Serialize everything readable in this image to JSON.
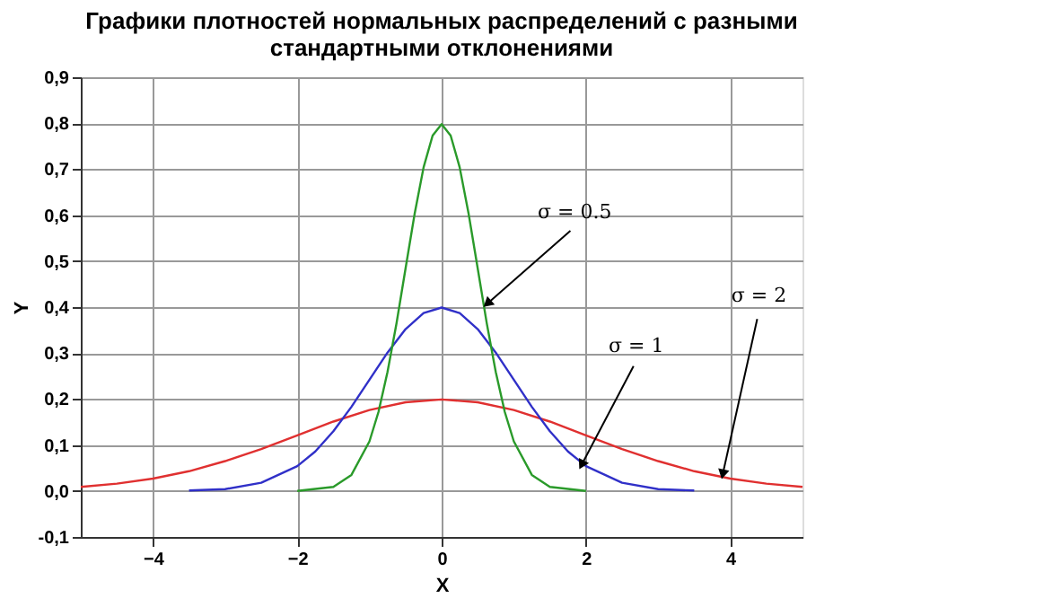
{
  "chart_data": {
    "type": "line",
    "title": [
      "Графики плотностей нормальных распределений с разными",
      "стандартными отклонениями"
    ],
    "xlabel": "X",
    "ylabel": "Y",
    "series": [
      {
        "color": "#e03030",
        "x": [
          -5,
          -4.5,
          -4,
          -3.5,
          -3,
          -2.5,
          -2,
          -1.5,
          -1,
          -0.5,
          0,
          0.5,
          1,
          1.5,
          2,
          2.5,
          3,
          3.5,
          4,
          4.5,
          5
        ],
        "values": [
          0.009,
          0.016,
          0.027,
          0.043,
          0.065,
          0.091,
          0.121,
          0.151,
          0.176,
          0.193,
          0.199,
          0.193,
          0.176,
          0.151,
          0.121,
          0.091,
          0.065,
          0.043,
          0.027,
          0.016,
          0.009
        ]
      },
      {
        "color": "#3030c8",
        "x": [
          -3.5,
          -3,
          -2.5,
          -2,
          -1.75,
          -1.5,
          -1.25,
          -1,
          -0.75,
          -0.5,
          -0.25,
          0,
          0.25,
          0.5,
          0.75,
          1,
          1.25,
          1.5,
          1.75,
          2,
          2.5,
          3,
          3.5
        ],
        "values": [
          0.001,
          0.004,
          0.018,
          0.054,
          0.086,
          0.13,
          0.183,
          0.242,
          0.301,
          0.352,
          0.387,
          0.399,
          0.387,
          0.352,
          0.301,
          0.242,
          0.183,
          0.13,
          0.086,
          0.054,
          0.018,
          0.004,
          0.001
        ]
      },
      {
        "color": "#2a9a2a",
        "x": [
          -2,
          -1.5,
          -1.25,
          -1,
          -0.875,
          -0.75,
          -0.625,
          -0.5,
          -0.375,
          -0.25,
          -0.125,
          0,
          0.125,
          0.25,
          0.375,
          0.5,
          0.625,
          0.75,
          0.875,
          1,
          1.25,
          1.5,
          2
        ],
        "values": [
          0.0,
          0.009,
          0.035,
          0.108,
          0.172,
          0.259,
          0.365,
          0.484,
          0.602,
          0.704,
          0.773,
          0.798,
          0.773,
          0.704,
          0.602,
          0.484,
          0.365,
          0.259,
          0.172,
          0.108,
          0.035,
          0.009,
          0.0
        ]
      }
    ],
    "annotations": [
      {
        "text": "σ = 0.5",
        "x": 0.65,
        "y": 0.41
      },
      {
        "text": "σ = 1",
        "x": 1.95,
        "y": 0.06
      },
      {
        "text": "σ = 2",
        "x": 3.9,
        "y": 0.04
      }
    ],
    "xlim": [
      -5,
      5
    ],
    "xticks": [
      -4,
      -2,
      0,
      2,
      4
    ],
    "ylim": [
      -0.1,
      0.9
    ],
    "yticks": [
      {
        "value": -0.1,
        "label": "-0,1"
      },
      {
        "value": 0,
        "label": "0,0"
      },
      {
        "value": 0.1,
        "label": "0,1"
      },
      {
        "value": 0.2,
        "label": "0,2"
      },
      {
        "value": 0.3,
        "label": "0,3"
      },
      {
        "value": 0.4,
        "label": "0,4"
      },
      {
        "value": 0.5,
        "label": "0,5"
      },
      {
        "value": 0.6,
        "label": "0,6"
      },
      {
        "value": 0.7,
        "label": "0,7"
      },
      {
        "value": 0.8,
        "label": "0,8"
      },
      {
        "value": 0.9,
        "label": "0,9"
      }
    ],
    "grid": true,
    "legend": false,
    "line_style": "solid",
    "marker": "none"
  }
}
